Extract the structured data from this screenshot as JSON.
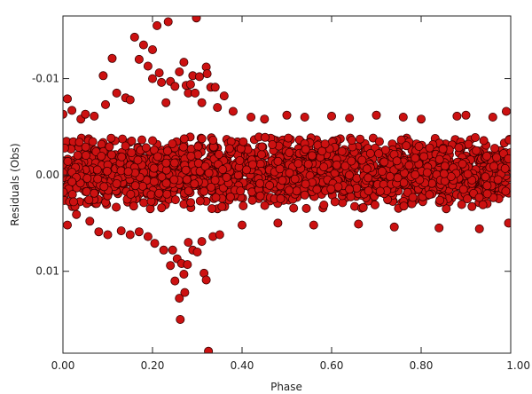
{
  "chart_data": {
    "type": "scatter",
    "title": "",
    "xlabel": "Phase",
    "ylabel": "Residuals (Obs)",
    "xlim": [
      0.0,
      1.0
    ],
    "ylim": [
      -0.0165,
      0.0185
    ],
    "y_inverted": true,
    "grid": false,
    "legend": "none",
    "x_ticks": [
      0.0,
      0.2,
      0.4,
      0.6,
      0.8,
      1.0
    ],
    "x_tick_labels": [
      "0.00",
      "0.20",
      "0.40",
      "0.60",
      "0.80",
      "1.00"
    ],
    "y_ticks": [
      -0.01,
      0.0,
      0.01
    ],
    "y_tick_labels": [
      "-0.01",
      "0.00",
      "0.01"
    ],
    "marker_fill": "#cc1111",
    "marker_edge": "#3a0000",
    "band": {
      "x_range": [
        0.0,
        1.0
      ],
      "y_center": -0.0002,
      "y_half_width": 0.003,
      "point_count": 2200
    },
    "series": [
      {
        "values_note_free": true,
        "points": [
          [
            0.0,
            -0.0063
          ],
          [
            0.01,
            -0.0079
          ],
          [
            0.01,
            0.0052
          ],
          [
            0.02,
            -0.0067
          ],
          [
            0.03,
            0.0041
          ],
          [
            0.04,
            -0.0058
          ],
          [
            0.05,
            -0.0063
          ],
          [
            0.06,
            0.0048
          ],
          [
            0.07,
            -0.0061
          ],
          [
            0.08,
            0.0059
          ],
          [
            0.09,
            -0.0103
          ],
          [
            0.095,
            -0.0073
          ],
          [
            0.1,
            0.0062
          ],
          [
            0.11,
            -0.0121
          ],
          [
            0.12,
            -0.0085
          ],
          [
            0.13,
            0.0058
          ],
          [
            0.14,
            -0.008
          ],
          [
            0.15,
            -0.0078
          ],
          [
            0.15,
            0.0062
          ],
          [
            0.16,
            -0.0143
          ],
          [
            0.17,
            -0.012
          ],
          [
            0.17,
            0.0059
          ],
          [
            0.18,
            -0.0135
          ],
          [
            0.19,
            -0.0113
          ],
          [
            0.19,
            0.0064
          ],
          [
            0.2,
            -0.01
          ],
          [
            0.2,
            -0.013
          ],
          [
            0.205,
            0.0071
          ],
          [
            0.21,
            -0.0155
          ],
          [
            0.215,
            -0.0106
          ],
          [
            0.22,
            -0.0096
          ],
          [
            0.225,
            0.0078
          ],
          [
            0.23,
            -0.0075
          ],
          [
            0.235,
            -0.0159
          ],
          [
            0.24,
            -0.0097
          ],
          [
            0.24,
            0.0094
          ],
          [
            0.245,
            0.0078
          ],
          [
            0.25,
            -0.0092
          ],
          [
            0.25,
            0.011
          ],
          [
            0.255,
            0.0087
          ],
          [
            0.26,
            -0.0107
          ],
          [
            0.26,
            0.0128
          ],
          [
            0.262,
            0.015
          ],
          [
            0.265,
            0.0092
          ],
          [
            0.27,
            -0.0117
          ],
          [
            0.27,
            0.0103
          ],
          [
            0.272,
            0.0122
          ],
          [
            0.275,
            -0.0093
          ],
          [
            0.278,
            0.0093
          ],
          [
            0.28,
            -0.0085
          ],
          [
            0.28,
            0.007
          ],
          [
            0.285,
            -0.0094
          ],
          [
            0.29,
            -0.0103
          ],
          [
            0.29,
            0.0078
          ],
          [
            0.295,
            -0.0085
          ],
          [
            0.298,
            -0.0163
          ],
          [
            0.3,
            0.008
          ],
          [
            0.305,
            -0.0102
          ],
          [
            0.31,
            -0.0075
          ],
          [
            0.31,
            0.0069
          ],
          [
            0.315,
            0.0102
          ],
          [
            0.32,
            -0.0112
          ],
          [
            0.32,
            0.0109
          ],
          [
            0.322,
            -0.0105
          ],
          [
            0.325,
            0.0183
          ],
          [
            0.33,
            -0.0091
          ],
          [
            0.335,
            0.0064
          ],
          [
            0.34,
            -0.0091
          ],
          [
            0.345,
            -0.007
          ],
          [
            0.35,
            0.0062
          ],
          [
            0.36,
            -0.0082
          ],
          [
            0.38,
            -0.0066
          ],
          [
            0.4,
            0.0052
          ],
          [
            0.42,
            -0.006
          ],
          [
            0.45,
            -0.0058
          ],
          [
            0.48,
            0.005
          ],
          [
            0.5,
            -0.0062
          ],
          [
            0.54,
            -0.006
          ],
          [
            0.56,
            0.0052
          ],
          [
            0.6,
            -0.0061
          ],
          [
            0.64,
            -0.0059
          ],
          [
            0.66,
            0.0051
          ],
          [
            0.7,
            -0.0062
          ],
          [
            0.74,
            0.0054
          ],
          [
            0.76,
            -0.006
          ],
          [
            0.8,
            -0.0058
          ],
          [
            0.84,
            0.0055
          ],
          [
            0.88,
            -0.0061
          ],
          [
            0.9,
            -0.0062
          ],
          [
            0.93,
            0.0056
          ],
          [
            0.96,
            -0.006
          ],
          [
            0.99,
            -0.0066
          ],
          [
            0.995,
            0.005
          ]
        ]
      }
    ]
  }
}
